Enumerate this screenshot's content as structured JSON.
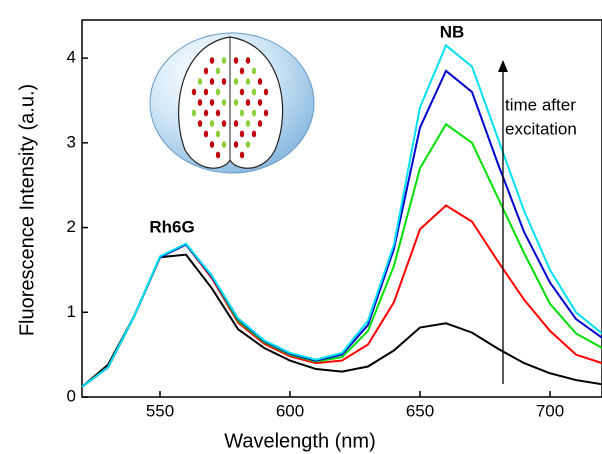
{
  "chart_data": {
    "type": "line",
    "xlabel": "Wavelength (nm)",
    "ylabel": "Fluorescence Intensity (a.u.)",
    "x": [
      520,
      530,
      540,
      550,
      560,
      570,
      580,
      590,
      600,
      610,
      620,
      630,
      640,
      650,
      660,
      670,
      680,
      690,
      700,
      710,
      720
    ],
    "series": [
      {
        "color": "#000000",
        "values": [
          0.12,
          0.38,
          0.95,
          1.65,
          1.68,
          1.28,
          0.8,
          0.58,
          0.43,
          0.33,
          0.3,
          0.36,
          0.55,
          0.82,
          0.87,
          0.76,
          0.57,
          0.4,
          0.28,
          0.2,
          0.15
        ]
      },
      {
        "color": "#ff0000",
        "values": [
          0.12,
          0.35,
          0.95,
          1.65,
          1.8,
          1.4,
          0.88,
          0.63,
          0.48,
          0.4,
          0.43,
          0.62,
          1.12,
          1.98,
          2.26,
          2.07,
          1.6,
          1.15,
          0.78,
          0.5,
          0.4
        ]
      },
      {
        "color": "#00e000",
        "values": [
          0.12,
          0.35,
          0.95,
          1.65,
          1.8,
          1.42,
          0.9,
          0.65,
          0.5,
          0.42,
          0.47,
          0.78,
          1.55,
          2.7,
          3.22,
          3.0,
          2.35,
          1.7,
          1.1,
          0.75,
          0.58
        ]
      },
      {
        "color": "#0000d0",
        "values": [
          0.12,
          0.35,
          0.95,
          1.65,
          1.8,
          1.42,
          0.92,
          0.66,
          0.51,
          0.43,
          0.5,
          0.85,
          1.75,
          3.18,
          3.85,
          3.6,
          2.75,
          1.95,
          1.35,
          0.92,
          0.7
        ]
      },
      {
        "color": "#00e0f0",
        "values": [
          0.12,
          0.35,
          0.95,
          1.66,
          1.81,
          1.43,
          0.93,
          0.67,
          0.52,
          0.44,
          0.52,
          0.9,
          1.8,
          3.42,
          4.15,
          3.9,
          3.05,
          2.2,
          1.5,
          1.0,
          0.75
        ]
      }
    ],
    "xlim": [
      520,
      720
    ],
    "ylim": [
      0,
      4.45
    ],
    "xticks": [
      550,
      600,
      650,
      700
    ],
    "yticks": [
      0,
      1,
      2,
      3,
      4
    ],
    "annotations": [
      {
        "text": "Rh6G"
      },
      {
        "text": "NB"
      },
      {
        "text": "time after"
      },
      {
        "text": "excitation"
      }
    ]
  }
}
